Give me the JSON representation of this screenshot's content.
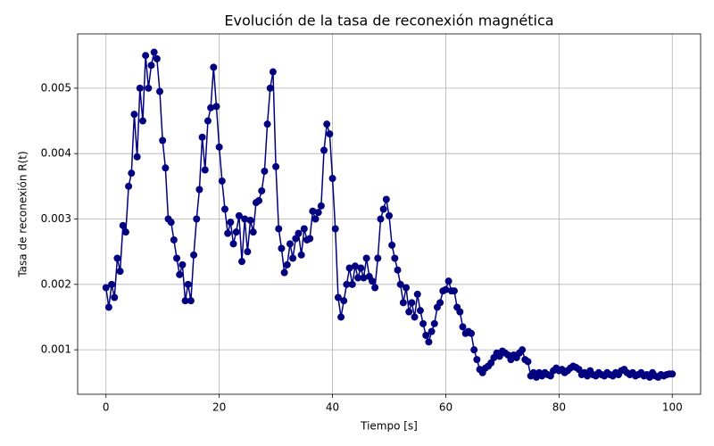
{
  "chart_data": {
    "type": "line",
    "title": "Evolución de la tasa de reconexión magnética",
    "x_label": "Tiempo [s]",
    "y_label": "Tasa de reconexión R(t)",
    "xlim": [
      -5,
      105
    ],
    "ylim": [
      0.00032,
      0.00583
    ],
    "xticks": [
      0,
      20,
      40,
      60,
      80,
      100
    ],
    "yticks": [
      0.001,
      0.002,
      0.003,
      0.004,
      0.005
    ],
    "grid": true,
    "x": [
      0,
      0.5,
      1,
      1.5,
      2,
      2.5,
      3,
      3.5,
      4,
      4.5,
      5,
      5.5,
      6,
      6.5,
      7,
      7.5,
      8,
      8.5,
      9,
      9.5,
      10,
      10.5,
      11,
      11.5,
      12,
      12.5,
      13,
      13.5,
      14,
      14.5,
      15,
      15.5,
      16,
      16.5,
      17,
      17.5,
      18,
      18.5,
      19,
      19.5,
      20,
      20.5,
      21,
      21.5,
      22,
      22.5,
      23,
      23.5,
      24,
      24.5,
      25,
      25.5,
      26,
      26.5,
      27,
      27.5,
      28,
      28.5,
      29,
      29.5,
      30,
      30.5,
      31,
      31.5,
      32,
      32.5,
      33,
      33.5,
      34,
      34.5,
      35,
      35.5,
      36,
      36.5,
      37,
      37.5,
      38,
      38.5,
      39,
      39.5,
      40,
      40.5,
      41,
      41.5,
      42,
      42.5,
      43,
      43.5,
      44,
      44.5,
      45,
      45.5,
      46,
      46.5,
      47,
      47.5,
      48,
      48.5,
      49,
      49.5,
      50,
      50.5,
      51,
      51.5,
      52,
      52.5,
      53,
      53.5,
      54,
      54.5,
      55,
      55.5,
      56,
      56.5,
      57,
      57.5,
      58,
      58.5,
      59,
      59.5,
      60,
      60.5,
      61,
      61.5,
      62,
      62.5,
      63,
      63.5,
      64,
      64.5,
      65,
      65.5,
      66,
      66.5,
      67,
      67.5,
      68,
      68.5,
      69,
      69.5,
      70,
      70.5,
      71,
      71.5,
      72,
      72.5,
      73,
      73.5,
      74,
      74.5,
      75,
      75.5,
      76,
      76.5,
      77,
      77.5,
      78,
      78.5,
      79,
      79.5,
      80,
      80.5,
      81,
      81.5,
      82,
      82.5,
      83,
      83.5,
      84,
      84.5,
      85,
      85.5,
      86,
      86.5,
      87,
      87.5,
      88,
      88.5,
      89,
      89.5,
      90,
      90.5,
      91,
      91.5,
      92,
      92.5,
      93,
      93.5,
      94,
      94.5,
      95,
      95.5,
      96,
      96.5,
      97,
      97.5,
      98,
      98.5,
      99,
      99.5,
      100
    ],
    "series": [
      {
        "color": "#000080",
        "values": [
          0.00195,
          0.00165,
          0.002,
          0.0018,
          0.0024,
          0.0022,
          0.0029,
          0.0028,
          0.0035,
          0.0037,
          0.0046,
          0.00395,
          0.005,
          0.0045,
          0.0055,
          0.005,
          0.00535,
          0.00555,
          0.00545,
          0.00495,
          0.0042,
          0.00378,
          0.003,
          0.00295,
          0.00268,
          0.0024,
          0.00215,
          0.0023,
          0.00175,
          0.002,
          0.00175,
          0.00245,
          0.003,
          0.00345,
          0.00425,
          0.00375,
          0.0045,
          0.0047,
          0.00532,
          0.00472,
          0.0041,
          0.00358,
          0.00315,
          0.00278,
          0.00295,
          0.00262,
          0.0028,
          0.00305,
          0.00235,
          0.003,
          0.0025,
          0.00298,
          0.0028,
          0.00325,
          0.00328,
          0.00343,
          0.00373,
          0.00445,
          0.005,
          0.00525,
          0.0038,
          0.00285,
          0.00255,
          0.00218,
          0.0023,
          0.00262,
          0.0024,
          0.0027,
          0.00278,
          0.00245,
          0.00285,
          0.00268,
          0.0027,
          0.00312,
          0.003,
          0.0031,
          0.0032,
          0.00405,
          0.00445,
          0.0043,
          0.00362,
          0.00285,
          0.0018,
          0.0015,
          0.00175,
          0.002,
          0.00225,
          0.002,
          0.00228,
          0.0021,
          0.00225,
          0.0021,
          0.0024,
          0.00212,
          0.00205,
          0.00195,
          0.0024,
          0.003,
          0.00315,
          0.0033,
          0.00305,
          0.0026,
          0.0024,
          0.00222,
          0.002,
          0.00172,
          0.00195,
          0.00158,
          0.00172,
          0.0015,
          0.00185,
          0.0016,
          0.0014,
          0.00122,
          0.00112,
          0.00128,
          0.0014,
          0.00165,
          0.00172,
          0.0019,
          0.00192,
          0.00205,
          0.0019,
          0.0019,
          0.00165,
          0.00158,
          0.00135,
          0.00125,
          0.00128,
          0.00125,
          0.001,
          0.00085,
          0.0007,
          0.00065,
          0.00072,
          0.00075,
          0.0008,
          0.00088,
          0.00095,
          0.0009,
          0.00098,
          0.00095,
          0.00092,
          0.00085,
          0.00092,
          0.00088,
          0.00095,
          0.001,
          0.00085,
          0.00082,
          0.0006,
          0.00065,
          0.00058,
          0.00065,
          0.0006,
          0.00065,
          0.00062,
          0.0006,
          0.00068,
          0.00072,
          0.00068,
          0.0007,
          0.00065,
          0.00068,
          0.00072,
          0.00075,
          0.00073,
          0.0007,
          0.00062,
          0.00065,
          0.0006,
          0.00068,
          0.00062,
          0.0006,
          0.00065,
          0.00062,
          0.0006,
          0.00065,
          0.00062,
          0.0006,
          0.00065,
          0.00062,
          0.00068,
          0.0007,
          0.00065,
          0.00062,
          0.00065,
          0.0006,
          0.00062,
          0.00065,
          0.0006,
          0.00062,
          0.00058,
          0.00065,
          0.0006,
          0.00058,
          0.00062,
          0.0006,
          0.00062,
          0.00063,
          0.00063
        ]
      }
    ]
  }
}
